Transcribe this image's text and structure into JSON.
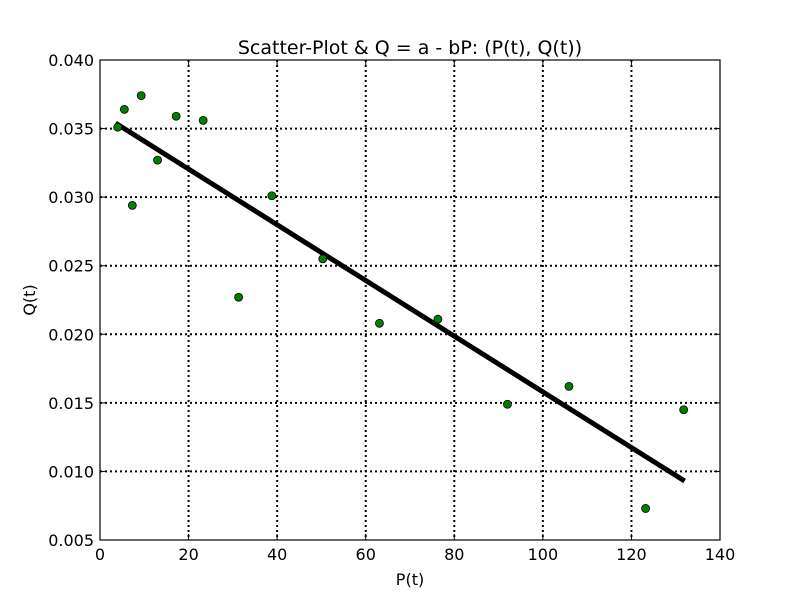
{
  "chart_data": {
    "type": "scatter",
    "title": "Scatter-Plot & Q = a - bP: (P(t), Q(t))",
    "xlabel": "P(t)",
    "ylabel": "Q(t)",
    "xlim": [
      0,
      140
    ],
    "ylim": [
      0.005,
      0.04
    ],
    "x_ticks": [
      0,
      20,
      40,
      60,
      80,
      100,
      120,
      140
    ],
    "y_ticks": [
      0.005,
      0.01,
      0.015,
      0.02,
      0.025,
      0.03,
      0.035,
      0.04
    ],
    "x_tick_labels": [
      "0",
      "20",
      "40",
      "60",
      "80",
      "100",
      "120",
      "140"
    ],
    "y_tick_labels": [
      "0.005",
      "0.010",
      "0.015",
      "0.020",
      "0.025",
      "0.030",
      "0.035",
      "0.040"
    ],
    "grid": true,
    "series": [
      {
        "type": "scatter",
        "color": "#008000",
        "x": [
          4.0,
          5.5,
          7.3,
          9.3,
          13.0,
          17.2,
          23.3,
          31.3,
          38.8,
          50.3,
          63.1,
          76.3,
          92.0,
          105.9,
          123.2,
          131.8
        ],
        "y": [
          0.0351,
          0.0364,
          0.0294,
          0.0374,
          0.0327,
          0.0359,
          0.0356,
          0.0227,
          0.0301,
          0.0255,
          0.0208,
          0.0211,
          0.0149,
          0.0162,
          0.0073,
          0.0145
        ]
      },
      {
        "type": "line",
        "color": "#000000",
        "x": [
          3.5,
          132.0
        ],
        "y": [
          0.0354,
          0.0093
        ]
      }
    ]
  }
}
